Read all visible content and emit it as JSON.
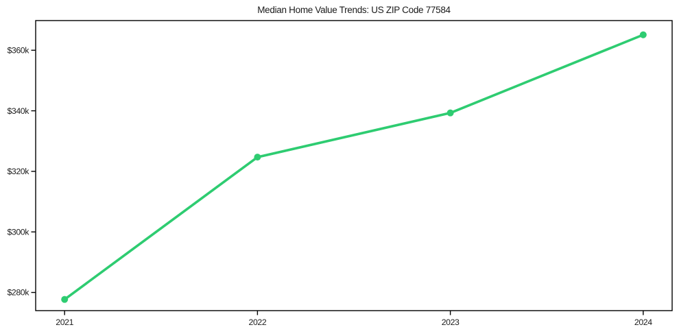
{
  "chart_data": {
    "type": "line",
    "title": "Median Home Value Trends: US ZIP Code 77584",
    "x": [
      2021,
      2022,
      2023,
      2024
    ],
    "x_tick_labels": [
      "2021",
      "2022",
      "2023",
      "2024"
    ],
    "y_tick_values": [
      280000,
      300000,
      320000,
      340000,
      360000
    ],
    "y_tick_labels": [
      "$280k",
      "$300k",
      "$320k",
      "$340k",
      "$360k"
    ],
    "series": [
      {
        "values": [
          277700,
          324700,
          339300,
          365100
        ],
        "color": "#2ecc71",
        "marker": "circle",
        "marker_radius": 5,
        "line_width": 3.6
      }
    ],
    "xlim": [
      2020.85,
      2024.15
    ],
    "ylim": [
      274000,
      369800
    ],
    "grid": false,
    "legend_position": "none",
    "background_color": "#ffffff",
    "axis_color": "#000000",
    "text_color": "#1a1a1a"
  }
}
